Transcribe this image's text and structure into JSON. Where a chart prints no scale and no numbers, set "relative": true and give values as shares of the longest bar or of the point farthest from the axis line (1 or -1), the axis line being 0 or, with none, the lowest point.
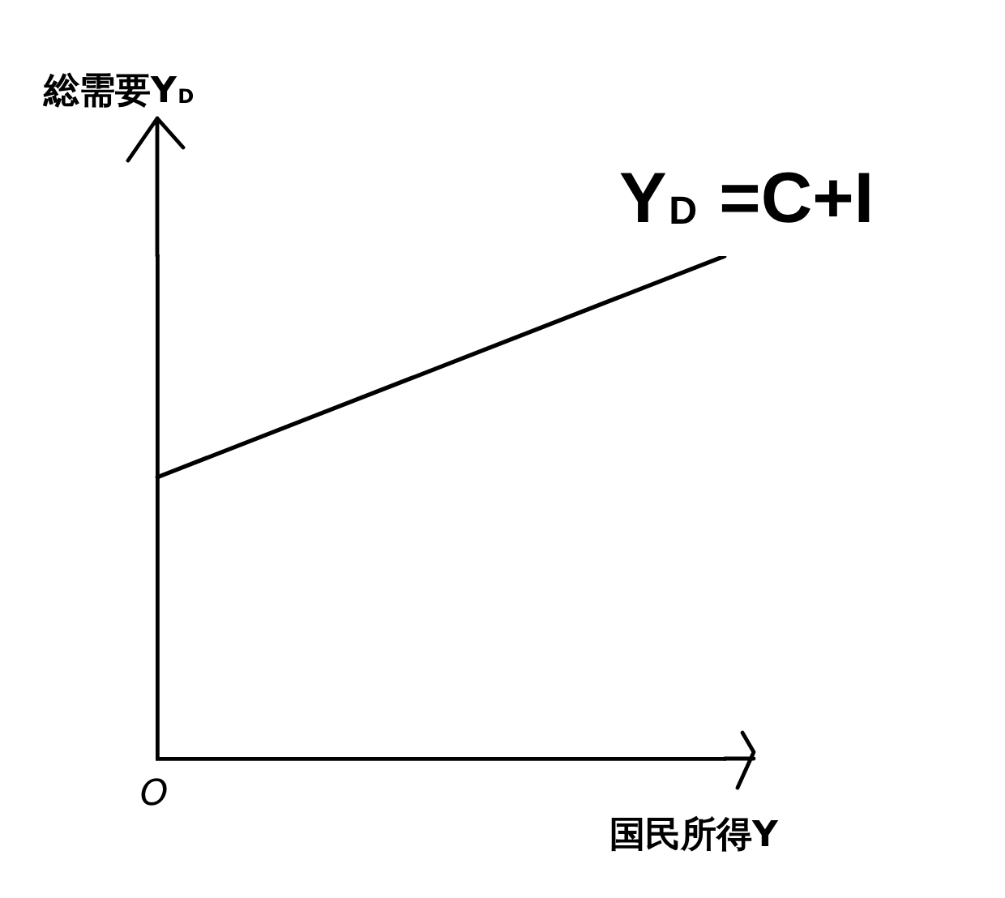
{
  "chart_data": {
    "type": "line",
    "relative": true,
    "categories": [
      null,
      null
    ],
    "series": [
      {
        "name": "Y$_{D}$ =C+I",
        "color": "#000000",
        "values": [
          0.56,
          1
        ]
      }
    ],
    "xlabel": "国民所得Y",
    "ylabel": "総需要Y$_{D}$",
    "annotations": [
      "O"
    ],
    "legend": false,
    "marker": "none",
    "line_style": "solid"
  }
}
